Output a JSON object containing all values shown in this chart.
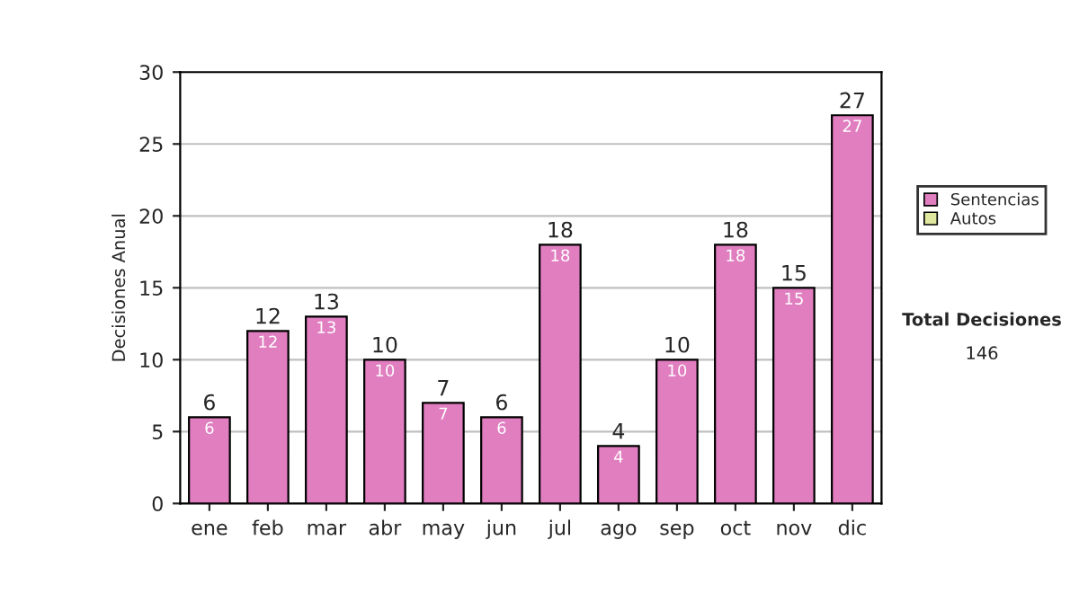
{
  "chart_data": {
    "type": "bar",
    "ylabel": "Decisiones Anual",
    "categories": [
      "ene",
      "feb",
      "mar",
      "abr",
      "may",
      "jun",
      "jul",
      "ago",
      "sep",
      "oct",
      "nov",
      "dic"
    ],
    "series": [
      {
        "name": "Sentencias",
        "color": "#e07ec0",
        "values": [
          6,
          12,
          13,
          10,
          7,
          6,
          18,
          4,
          10,
          18,
          15,
          27
        ],
        "value_labels": [
          "6",
          "12",
          "13",
          "10",
          "7",
          "6",
          "18",
          "4",
          "10",
          "18",
          "15",
          "27"
        ]
      },
      {
        "name": "Autos",
        "color": "#e0e8a0",
        "values": [
          null,
          null,
          null,
          null,
          null,
          null,
          null,
          null,
          null,
          null,
          null,
          null
        ]
      }
    ],
    "stacked": true,
    "totals": [
      "6",
      "12",
      "13",
      "10",
      "7",
      "6",
      "18",
      "4",
      "10",
      "18",
      "15",
      "27"
    ],
    "ylim": [
      0,
      30
    ],
    "yticks": [
      0,
      5,
      10,
      15,
      20,
      25,
      30
    ],
    "grid": "y",
    "legend": "right",
    "annotations": [
      "Total Decisiones",
      "146"
    ]
  }
}
